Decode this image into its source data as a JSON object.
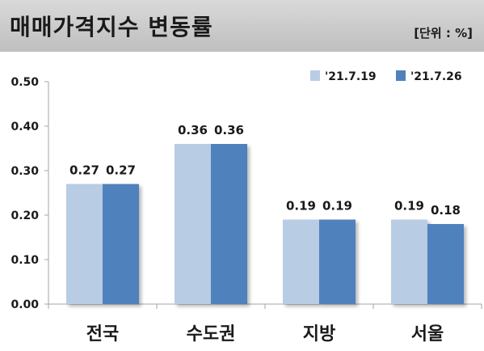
{
  "header": {
    "title": "매매가격지수 변동률",
    "unit": "[단위 : %]"
  },
  "colors": {
    "series1": "#b8cce4",
    "series2": "#4f81bd",
    "header_bg": "#c8c8c8"
  },
  "chart_data": {
    "type": "bar",
    "title": "매매가격지수 변동률",
    "unit": "[단위 : %]",
    "categories": [
      "전국",
      "수도권",
      "지방",
      "서울"
    ],
    "series": [
      {
        "name": "'21.7.19",
        "values": [
          0.27,
          0.36,
          0.19,
          0.19
        ]
      },
      {
        "name": "'21.7.26",
        "values": [
          0.27,
          0.36,
          0.19,
          0.18
        ]
      }
    ],
    "data_labels": [
      [
        "0.27",
        "0.36",
        "0.19",
        "0.19"
      ],
      [
        "0.27",
        "0.36",
        "0.19",
        "0.18"
      ]
    ],
    "ylim": [
      0,
      0.5
    ],
    "yticks": [
      "0.00",
      "0.10",
      "0.20",
      "0.30",
      "0.40",
      "0.50"
    ],
    "xlabel": "",
    "ylabel": "",
    "grid": false,
    "legend_position": "top-right"
  }
}
